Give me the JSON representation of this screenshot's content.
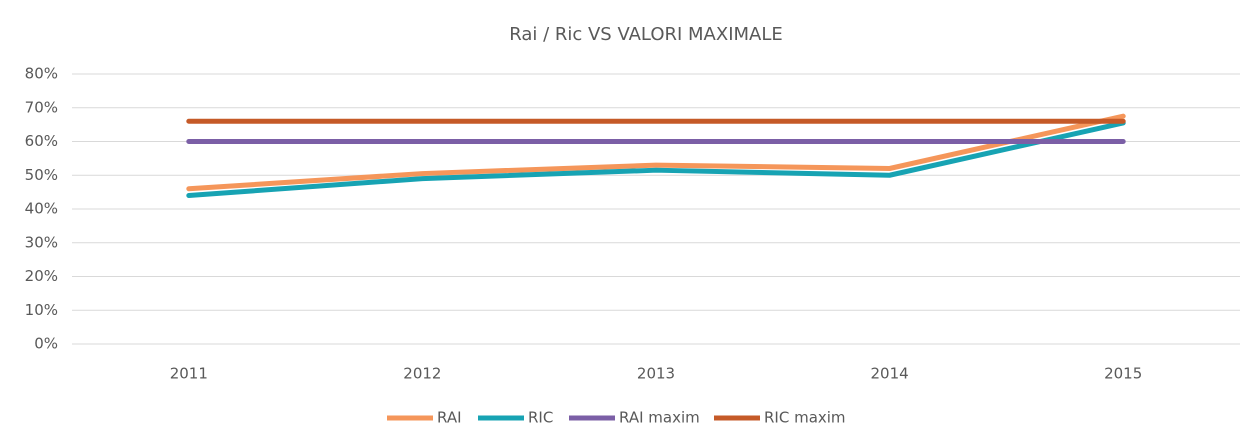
{
  "chart_data": {
    "type": "line",
    "title": "Rai / Ric VS VALORI MAXIMALE",
    "categories": [
      "2011",
      "2012",
      "2013",
      "2014",
      "2015"
    ],
    "series": [
      {
        "name": "RAI",
        "color": "#f5965a",
        "values": [
          46,
          50.5,
          53,
          52,
          67.5
        ]
      },
      {
        "name": "RIC",
        "color": "#17a3b3",
        "values": [
          44,
          49,
          51.5,
          50,
          65.5
        ]
      },
      {
        "name": "RAI maxim",
        "color": "#7b5fa6",
        "values": [
          60,
          60,
          60,
          60,
          60
        ]
      },
      {
        "name": "RIC maxim",
        "color": "#c55a28",
        "values": [
          66,
          66,
          66,
          66,
          66
        ]
      }
    ],
    "ylim": [
      0,
      80
    ],
    "yticks": [
      {
        "value": 0,
        "label": "0%"
      },
      {
        "value": 10,
        "label": "10%"
      },
      {
        "value": 20,
        "label": "20%"
      },
      {
        "value": 30,
        "label": "30%"
      },
      {
        "value": 40,
        "label": "40%"
      },
      {
        "value": 50,
        "label": "50%"
      },
      {
        "value": 60,
        "label": "60%"
      },
      {
        "value": 70,
        "label": "70%"
      },
      {
        "value": 80,
        "label": "80%"
      }
    ],
    "grid": true,
    "legend": "bottom"
  }
}
